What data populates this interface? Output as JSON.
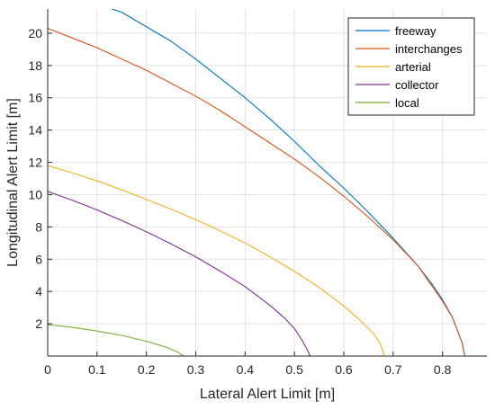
{
  "chart_data": {
    "type": "line",
    "title": "",
    "xlabel": "Lateral Alert Limit [m]",
    "ylabel": "Longitudinal Alert Limit [m]",
    "xlim": [
      0,
      0.89
    ],
    "ylim": [
      0,
      21.5
    ],
    "xticks": [
      0,
      0.1,
      0.2,
      0.3,
      0.4,
      0.5,
      0.6,
      0.7,
      0.8
    ],
    "xtick_labels": [
      "0",
      "0.1",
      "0.2",
      "0.3",
      "0.4",
      "0.5",
      "0.6",
      "0.7",
      "0.8"
    ],
    "yticks": [
      2,
      4,
      6,
      8,
      10,
      12,
      14,
      16,
      18,
      20
    ],
    "ytick_labels": [
      "2",
      "4",
      "6",
      "8",
      "10",
      "12",
      "14",
      "16",
      "18",
      "20"
    ],
    "grid": true,
    "legend_position": "top-right",
    "series": [
      {
        "name": "freeway",
        "color": "#0072bd",
        "x": [
          0.13,
          0.15,
          0.2,
          0.25,
          0.3,
          0.35,
          0.4,
          0.45,
          0.5,
          0.55,
          0.6,
          0.65,
          0.7,
          0.75,
          0.78,
          0.8,
          0.82,
          0.83,
          0.84,
          0.845
        ],
        "y": [
          21.5,
          21.3,
          20.4,
          19.5,
          18.4,
          17.2,
          16.0,
          14.7,
          13.3,
          11.8,
          10.4,
          8.9,
          7.3,
          5.6,
          4.4,
          3.5,
          2.4,
          1.6,
          0.8,
          0.0
        ]
      },
      {
        "name": "interchanges",
        "color": "#d95319",
        "x": [
          0,
          0.05,
          0.1,
          0.15,
          0.2,
          0.25,
          0.3,
          0.35,
          0.4,
          0.45,
          0.5,
          0.55,
          0.6,
          0.65,
          0.7,
          0.75,
          0.8,
          0.82,
          0.84,
          0.845
        ],
        "y": [
          20.3,
          19.7,
          19.1,
          18.4,
          17.7,
          16.9,
          16.1,
          15.2,
          14.2,
          13.2,
          12.2,
          11.1,
          9.9,
          8.6,
          7.2,
          5.6,
          3.4,
          2.4,
          0.8,
          0.0
        ]
      },
      {
        "name": "arterial",
        "color": "#edb120",
        "x": [
          0,
          0.05,
          0.1,
          0.15,
          0.2,
          0.25,
          0.3,
          0.35,
          0.4,
          0.45,
          0.5,
          0.55,
          0.6,
          0.63,
          0.66,
          0.675,
          0.682
        ],
        "y": [
          11.8,
          11.35,
          10.85,
          10.3,
          9.7,
          9.1,
          8.45,
          7.75,
          7.0,
          6.15,
          5.25,
          4.25,
          3.1,
          2.3,
          1.4,
          0.7,
          0.0
        ]
      },
      {
        "name": "collector",
        "color": "#7e2f8e",
        "x": [
          0,
          0.05,
          0.1,
          0.15,
          0.2,
          0.25,
          0.3,
          0.35,
          0.4,
          0.45,
          0.48,
          0.5,
          0.515,
          0.525,
          0.532
        ],
        "y": [
          10.2,
          9.65,
          9.05,
          8.4,
          7.7,
          6.95,
          6.15,
          5.25,
          4.3,
          3.15,
          2.35,
          1.7,
          1.0,
          0.45,
          0.0
        ]
      },
      {
        "name": "local",
        "color": "#77ac30",
        "x": [
          0,
          0.05,
          0.1,
          0.15,
          0.2,
          0.24,
          0.265,
          0.275
        ],
        "y": [
          1.95,
          1.78,
          1.55,
          1.28,
          0.92,
          0.55,
          0.22,
          0.0
        ]
      }
    ]
  }
}
